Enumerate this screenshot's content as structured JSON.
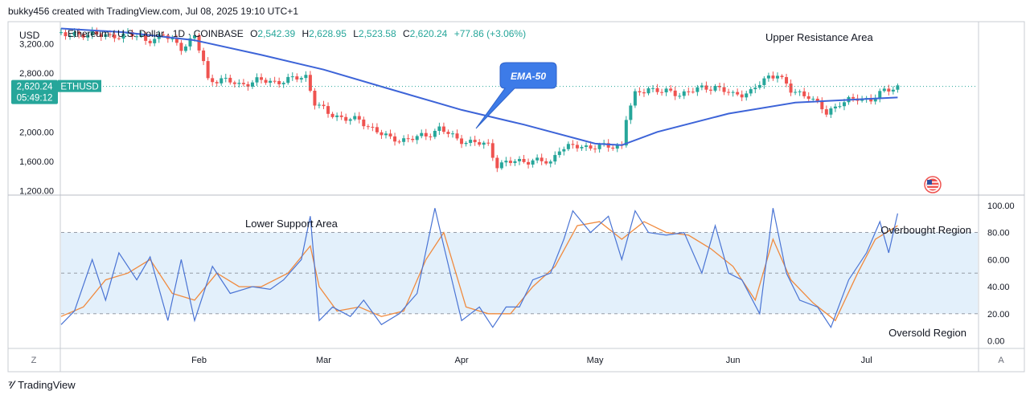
{
  "header": {
    "created_by": "bukky456 created with TradingView.com, Jul 08, 2025 19:10 UTC+1"
  },
  "footer": {
    "brand": "TradingView"
  },
  "colors": {
    "up": "#26a69a",
    "down": "#ef5350",
    "ema": "#3d64d8",
    "stoch_k": "#4a74d4",
    "stoch_d": "#f08a3e",
    "band": "#e3f0fb",
    "price_line": "#26a69a"
  },
  "chart_data": [
    {
      "type": "candlestick",
      "currency_label": "USD",
      "legend": {
        "symbol": "Ethereum / U.S. Dollar · 1D · COINBASE",
        "o_label": "O",
        "o": "2,542.39",
        "h_label": "H",
        "h": "2,628.95",
        "l_label": "L",
        "l": "2,523.58",
        "c_label": "C",
        "c": "2,620.24",
        "change": "+77.86 (+3.06%)"
      },
      "y_ticks": [
        "3,200.00",
        "2,800.00",
        "2,000.00",
        "1,600.00",
        "1,200.00"
      ],
      "y_tick_values": [
        3200,
        2800,
        2000,
        1600,
        1200
      ],
      "ylim": [
        1150,
        3470
      ],
      "x_ticks": [
        "Feb",
        "Mar",
        "Apr",
        "May",
        "Jun",
        "Jul"
      ],
      "x_tick_dates": [
        "2025-02-01",
        "2025-03-01",
        "2025-04-01",
        "2025-05-01",
        "2025-06-01",
        "2025-07-01"
      ],
      "x_range": [
        "2025-01-01",
        "2025-07-26"
      ],
      "last_price": {
        "value": 2620.24,
        "label": "2,620.24",
        "symbol": "ETHUSD",
        "countdown": "05:49:12"
      },
      "annotations": {
        "upper_resistance": "Upper Resistance Area",
        "ema_callout": "EMA-50"
      },
      "close_anchors": [
        [
          "2025-01-01",
          3350
        ],
        [
          "2025-01-05",
          3300
        ],
        [
          "2025-01-08",
          3360
        ],
        [
          "2025-01-12",
          3280
        ],
        [
          "2025-01-16",
          3350
        ],
        [
          "2025-01-20",
          3240
        ],
        [
          "2025-01-24",
          3320
        ],
        [
          "2025-01-28",
          3150
        ],
        [
          "2025-01-31",
          3300
        ],
        [
          "2025-02-02",
          2950
        ],
        [
          "2025-02-03",
          2700
        ],
        [
          "2025-02-06",
          2720
        ],
        [
          "2025-02-10",
          2640
        ],
        [
          "2025-02-14",
          2700
        ],
        [
          "2025-02-18",
          2680
        ],
        [
          "2025-02-22",
          2720
        ],
        [
          "2025-02-25",
          2760
        ],
        [
          "2025-02-27",
          2400
        ],
        [
          "2025-03-02",
          2250
        ],
        [
          "2025-03-05",
          2200
        ],
        [
          "2025-03-09",
          2150
        ],
        [
          "2025-03-12",
          2050
        ],
        [
          "2025-03-16",
          1900
        ],
        [
          "2025-03-20",
          1900
        ],
        [
          "2025-03-24",
          1950
        ],
        [
          "2025-03-27",
          2050
        ],
        [
          "2025-03-31",
          1900
        ],
        [
          "2025-04-04",
          1850
        ],
        [
          "2025-04-07",
          1820
        ],
        [
          "2025-04-09",
          1550
        ],
        [
          "2025-04-13",
          1600
        ],
        [
          "2025-04-17",
          1610
        ],
        [
          "2025-04-21",
          1580
        ],
        [
          "2025-04-23",
          1780
        ],
        [
          "2025-04-27",
          1800
        ],
        [
          "2025-05-01",
          1800
        ],
        [
          "2025-05-05",
          1800
        ],
        [
          "2025-05-07",
          1820
        ],
        [
          "2025-05-08",
          2200
        ],
        [
          "2025-05-10",
          2500
        ],
        [
          "2025-05-13",
          2600
        ],
        [
          "2025-05-16",
          2550
        ],
        [
          "2025-05-20",
          2520
        ],
        [
          "2025-05-24",
          2580
        ],
        [
          "2025-05-28",
          2620
        ],
        [
          "2025-06-01",
          2500
        ],
        [
          "2025-06-05",
          2550
        ],
        [
          "2025-06-09",
          2750
        ],
        [
          "2025-06-11",
          2800
        ],
        [
          "2025-06-14",
          2550
        ],
        [
          "2025-06-18",
          2500
        ],
        [
          "2025-06-22",
          2250
        ],
        [
          "2025-06-25",
          2400
        ],
        [
          "2025-06-29",
          2450
        ],
        [
          "2025-07-02",
          2450
        ],
        [
          "2025-07-05",
          2550
        ],
        [
          "2025-07-08",
          2620
        ]
      ],
      "ema50_anchors": [
        [
          "2025-01-01",
          3410
        ],
        [
          "2025-01-15",
          3360
        ],
        [
          "2025-01-31",
          3250
        ],
        [
          "2025-02-15",
          3050
        ],
        [
          "2025-03-01",
          2850
        ],
        [
          "2025-03-15",
          2600
        ],
        [
          "2025-04-01",
          2300
        ],
        [
          "2025-04-15",
          2100
        ],
        [
          "2025-05-01",
          1840
        ],
        [
          "2025-05-07",
          1820
        ],
        [
          "2025-05-15",
          2000
        ],
        [
          "2025-05-31",
          2250
        ],
        [
          "2025-06-15",
          2400
        ],
        [
          "2025-07-01",
          2450
        ],
        [
          "2025-07-08",
          2470
        ]
      ]
    },
    {
      "type": "line",
      "indicator": "stochastic",
      "y_ticks": [
        "100.00",
        "80.00",
        "60.00",
        "40.00",
        "20.00",
        "0.00"
      ],
      "y_tick_values": [
        100,
        80,
        60,
        40,
        20,
        0
      ],
      "ylim": [
        -5,
        107
      ],
      "levels": [
        80,
        50,
        20
      ],
      "annotations": {
        "lower_support": "Lower Support Area",
        "overbought": "Overbought Region",
        "oversold": "Oversold Region"
      },
      "k_anchors": [
        [
          "2025-01-01",
          12
        ],
        [
          "2025-01-04",
          22
        ],
        [
          "2025-01-08",
          60
        ],
        [
          "2025-01-11",
          30
        ],
        [
          "2025-01-14",
          65
        ],
        [
          "2025-01-18",
          45
        ],
        [
          "2025-01-21",
          62
        ],
        [
          "2025-01-25",
          15
        ],
        [
          "2025-01-28",
          60
        ],
        [
          "2025-01-31",
          15
        ],
        [
          "2025-02-04",
          55
        ],
        [
          "2025-02-08",
          35
        ],
        [
          "2025-02-13",
          40
        ],
        [
          "2025-02-17",
          38
        ],
        [
          "2025-02-20",
          45
        ],
        [
          "2025-02-24",
          60
        ],
        [
          "2025-02-26",
          92
        ],
        [
          "2025-02-28",
          15
        ],
        [
          "2025-03-03",
          25
        ],
        [
          "2025-03-07",
          18
        ],
        [
          "2025-03-10",
          30
        ],
        [
          "2025-03-14",
          12
        ],
        [
          "2025-03-18",
          20
        ],
        [
          "2025-03-22",
          35
        ],
        [
          "2025-03-26",
          98
        ],
        [
          "2025-03-28",
          70
        ],
        [
          "2025-04-01",
          15
        ],
        [
          "2025-04-05",
          25
        ],
        [
          "2025-04-08",
          10
        ],
        [
          "2025-04-11",
          25
        ],
        [
          "2025-04-14",
          25
        ],
        [
          "2025-04-17",
          45
        ],
        [
          "2025-04-21",
          50
        ],
        [
          "2025-04-24",
          75
        ],
        [
          "2025-04-26",
          96
        ],
        [
          "2025-04-30",
          80
        ],
        [
          "2025-05-04",
          92
        ],
        [
          "2025-05-07",
          60
        ],
        [
          "2025-05-10",
          96
        ],
        [
          "2025-05-13",
          80
        ],
        [
          "2025-05-17",
          78
        ],
        [
          "2025-05-21",
          80
        ],
        [
          "2025-05-25",
          50
        ],
        [
          "2025-05-28",
          85
        ],
        [
          "2025-05-31",
          50
        ],
        [
          "2025-06-03",
          45
        ],
        [
          "2025-06-07",
          20
        ],
        [
          "2025-06-10",
          98
        ],
        [
          "2025-06-13",
          50
        ],
        [
          "2025-06-16",
          30
        ],
        [
          "2025-06-20",
          25
        ],
        [
          "2025-06-23",
          10
        ],
        [
          "2025-06-27",
          45
        ],
        [
          "2025-07-01",
          65
        ],
        [
          "2025-07-04",
          88
        ],
        [
          "2025-07-06",
          65
        ],
        [
          "2025-07-08",
          94
        ]
      ],
      "d_anchors": [
        [
          "2025-01-01",
          18
        ],
        [
          "2025-01-06",
          25
        ],
        [
          "2025-01-11",
          45
        ],
        [
          "2025-01-16",
          50
        ],
        [
          "2025-01-21",
          60
        ],
        [
          "2025-01-26",
          35
        ],
        [
          "2025-01-31",
          30
        ],
        [
          "2025-02-05",
          50
        ],
        [
          "2025-02-10",
          40
        ],
        [
          "2025-02-15",
          40
        ],
        [
          "2025-02-21",
          50
        ],
        [
          "2025-02-26",
          70
        ],
        [
          "2025-02-28",
          40
        ],
        [
          "2025-03-04",
          22
        ],
        [
          "2025-03-09",
          25
        ],
        [
          "2025-03-14",
          18
        ],
        [
          "2025-03-19",
          22
        ],
        [
          "2025-03-24",
          60
        ],
        [
          "2025-03-28",
          80
        ],
        [
          "2025-04-02",
          25
        ],
        [
          "2025-04-07",
          20
        ],
        [
          "2025-04-12",
          20
        ],
        [
          "2025-04-17",
          40
        ],
        [
          "2025-04-22",
          55
        ],
        [
          "2025-04-27",
          85
        ],
        [
          "2025-05-02",
          88
        ],
        [
          "2025-05-07",
          75
        ],
        [
          "2025-05-12",
          88
        ],
        [
          "2025-05-17",
          80
        ],
        [
          "2025-05-22",
          78
        ],
        [
          "2025-05-27",
          68
        ],
        [
          "2025-06-01",
          55
        ],
        [
          "2025-06-06",
          30
        ],
        [
          "2025-06-10",
          75
        ],
        [
          "2025-06-14",
          45
        ],
        [
          "2025-06-19",
          28
        ],
        [
          "2025-06-24",
          15
        ],
        [
          "2025-06-29",
          50
        ],
        [
          "2025-07-03",
          75
        ],
        [
          "2025-07-08",
          85
        ]
      ]
    }
  ]
}
